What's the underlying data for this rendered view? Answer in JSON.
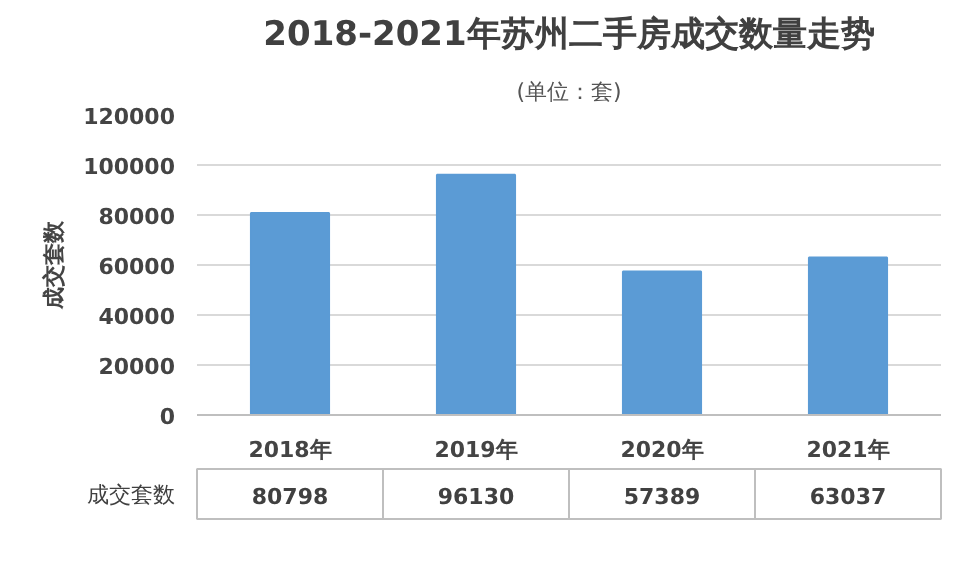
{
  "chart_data": {
    "type": "bar",
    "title": "2018-2021年苏州二手房成交数量走势",
    "subtitle": "(单位：套)",
    "ylabel": "成交套数",
    "categories": [
      "2018年",
      "2019年",
      "2020年",
      "2021年"
    ],
    "series": [
      {
        "name": "成交套数",
        "color": "#5b9bd5",
        "values": [
          80798,
          96130,
          57389,
          63037
        ]
      }
    ],
    "ylim": [
      0,
      120000
    ],
    "yticks": [
      0,
      20000,
      40000,
      60000,
      80000,
      100000,
      120000
    ],
    "grid": "y",
    "legend": "bottom",
    "data_labels": true
  }
}
